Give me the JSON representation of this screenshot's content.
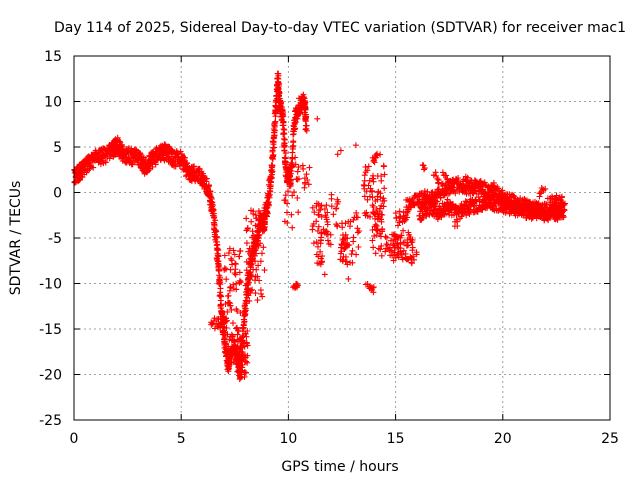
{
  "chart_data": {
    "type": "scatter",
    "title": "Day 114 of 2025, Sidereal Day-to-day VTEC variation (SDTVAR) for receiver mac1",
    "xlabel": "GPS time / hours",
    "ylabel": "SDTVAR / TECUs",
    "xlim": [
      0,
      25
    ],
    "ylim": [
      -25,
      15
    ],
    "xticks": [
      "0",
      "5",
      "10",
      "15",
      "20",
      "25"
    ],
    "yticks": [
      "-25",
      "-20",
      "-15",
      "-10",
      "-5",
      "0",
      "5",
      "10",
      "15"
    ],
    "grid": true,
    "marker": "plus",
    "color": "#ff0000",
    "series": [
      {
        "name": "mac1",
        "trend": [
          [
            0.0,
            1.8
          ],
          [
            0.3,
            2.3
          ],
          [
            0.6,
            3.0
          ],
          [
            1.0,
            3.8
          ],
          [
            1.4,
            4.0
          ],
          [
            1.8,
            4.6
          ],
          [
            2.0,
            5.2
          ],
          [
            2.3,
            4.2
          ],
          [
            2.6,
            4.0
          ],
          [
            3.0,
            3.8
          ],
          [
            3.3,
            2.9
          ],
          [
            3.6,
            3.6
          ],
          [
            4.0,
            4.2
          ],
          [
            4.3,
            4.5
          ],
          [
            4.6,
            3.8
          ],
          [
            5.0,
            3.6
          ],
          [
            5.3,
            2.4
          ],
          [
            5.6,
            2.0
          ],
          [
            6.0,
            1.6
          ],
          [
            6.3,
            0.2
          ],
          [
            6.5,
            -2.0
          ],
          [
            6.7,
            -7.0
          ],
          [
            6.85,
            -12.0
          ],
          [
            7.0,
            -16.0
          ],
          [
            7.2,
            -19.0
          ],
          [
            7.4,
            -16.5
          ],
          [
            7.6,
            -18.0
          ],
          [
            7.75,
            -20.0
          ],
          [
            7.9,
            -15.0
          ],
          [
            8.1,
            -10.0
          ],
          [
            8.3,
            -7.0
          ],
          [
            8.5,
            -5.5
          ],
          [
            8.7,
            -3.0
          ],
          [
            8.85,
            -3.5
          ],
          [
            9.0,
            -2.0
          ],
          [
            9.2,
            2.0
          ],
          [
            9.35,
            7.0
          ],
          [
            9.5,
            12.5
          ],
          [
            9.6,
            10.0
          ],
          [
            9.75,
            8.0
          ],
          [
            9.9,
            2.0
          ],
          [
            10.1,
            1.5
          ],
          [
            10.3,
            8.0
          ],
          [
            10.5,
            9.5
          ],
          [
            10.75,
            10.0
          ],
          [
            10.85,
            7.0
          ]
        ],
        "trend_spread": 0.9,
        "trend_density": 36,
        "clusters": [
          {
            "x": [
              6.4,
              7.1
            ],
            "y": [
              -15.0,
              -13.5
            ],
            "n": 26
          },
          {
            "x": [
              7.0,
              7.8
            ],
            "y": [
              -19.0,
              -6.0
            ],
            "n": 70
          },
          {
            "x": [
              7.6,
              8.1
            ],
            "y": [
              -20.5,
              -15.0
            ],
            "n": 40
          },
          {
            "x": [
              8.0,
              8.9
            ],
            "y": [
              -12.0,
              -1.5
            ],
            "n": 60
          },
          {
            "x": [
              8.9,
              9.1
            ],
            "y": [
              -2.5,
              -1.0
            ],
            "n": 6
          },
          {
            "x": [
              9.8,
              10.5
            ],
            "y": [
              -4.0,
              4.0
            ],
            "n": 24
          },
          {
            "x": [
              10.2,
              10.4
            ],
            "y": [
              -10.5,
              -10.0
            ],
            "n": 8
          },
          {
            "x": [
              10.6,
              11.0
            ],
            "y": [
              0.0,
              3.0
            ],
            "n": 10
          },
          {
            "x": [
              11.1,
              12.0
            ],
            "y": [
              -6.0,
              -1.0
            ],
            "n": 45
          },
          {
            "x": [
              11.3,
              11.6
            ],
            "y": [
              -8.0,
              -6.5
            ],
            "n": 10
          },
          {
            "x": [
              12.0,
              12.4
            ],
            "y": [
              -4.0,
              0.0
            ],
            "n": 12
          },
          {
            "x": [
              12.4,
              13.0
            ],
            "y": [
              -8.0,
              -3.0
            ],
            "n": 40
          },
          {
            "x": [
              13.0,
              13.3
            ],
            "y": [
              -7.0,
              -2.0
            ],
            "n": 12
          },
          {
            "x": [
              13.5,
              14.5
            ],
            "y": [
              -3.0,
              3.0
            ],
            "n": 60
          },
          {
            "x": [
              13.9,
              14.4
            ],
            "y": [
              -7.0,
              -2.0
            ],
            "n": 30
          },
          {
            "x": [
              13.6,
              14.0
            ],
            "y": [
              -11.0,
              -10.0
            ],
            "n": 12
          },
          {
            "x": [
              13.9,
              14.3
            ],
            "y": [
              3.0,
              5.0
            ],
            "n": 10
          },
          {
            "x": [
              14.5,
              15.7
            ],
            "y": [
              -7.5,
              -4.5
            ],
            "n": 70
          },
          {
            "x": [
              15.0,
              15.6
            ],
            "y": [
              -4.5,
              -2.0
            ],
            "n": 20
          },
          {
            "x": [
              15.6,
              16.0
            ],
            "y": [
              -8.0,
              -5.0
            ],
            "n": 15
          }
        ],
        "isolated": [
          [
            11.35,
            8.1
          ],
          [
            12.3,
            4.2
          ],
          [
            12.45,
            4.6
          ],
          [
            13.15,
            5.2
          ],
          [
            10.45,
            -10.2
          ],
          [
            11.7,
            -9.0
          ],
          [
            12.8,
            -9.5
          ]
        ],
        "tail_upper": [
          [
            15.5,
            -1.5
          ],
          [
            16.0,
            -1.0
          ],
          [
            16.4,
            -0.5
          ],
          [
            16.8,
            -0.8
          ],
          [
            17.2,
            0.3
          ],
          [
            17.6,
            0.6
          ],
          [
            18.0,
            0.9
          ],
          [
            18.4,
            0.5
          ],
          [
            18.8,
            0.6
          ],
          [
            19.2,
            0.3
          ],
          [
            19.6,
            0.0
          ],
          [
            20.0,
            -0.5
          ],
          [
            20.4,
            -1.0
          ],
          [
            20.8,
            -1.3
          ],
          [
            21.2,
            -1.6
          ],
          [
            21.6,
            -1.9
          ],
          [
            22.0,
            -2.0
          ],
          [
            22.4,
            -1.7
          ],
          [
            22.8,
            -1.2
          ]
        ],
        "tail_lower": [
          [
            16.1,
            -2.5
          ],
          [
            16.5,
            -1.6
          ],
          [
            17.0,
            -2.2
          ],
          [
            17.4,
            -1.5
          ],
          [
            17.8,
            -2.3
          ],
          [
            18.2,
            -1.8
          ],
          [
            18.6,
            -1.5
          ],
          [
            19.0,
            -1.2
          ],
          [
            19.4,
            -1.0
          ],
          [
            19.8,
            -1.3
          ],
          [
            20.2,
            -1.5
          ],
          [
            20.6,
            -1.8
          ],
          [
            21.0,
            -2.0
          ],
          [
            21.4,
            -2.2
          ],
          [
            21.8,
            -2.3
          ],
          [
            22.2,
            -2.4
          ],
          [
            22.6,
            -2.2
          ],
          [
            22.9,
            -2.0
          ]
        ],
        "tail_spread": 0.8,
        "tail_density": 30,
        "tail_extras": [
          [
            16.3,
            2.8
          ],
          [
            16.8,
            2.1
          ],
          [
            17.0,
            1.2
          ],
          [
            17.3,
            2.0
          ],
          [
            17.5,
            1.5
          ],
          [
            17.8,
            -3.5
          ],
          [
            18.3,
            1.6
          ],
          [
            18.5,
            1.2
          ],
          [
            18.9,
            1.0
          ],
          [
            19.5,
            0.9
          ],
          [
            21.7,
            -0.2
          ],
          [
            21.9,
            0.2
          ],
          [
            22.2,
            -0.5
          ],
          [
            22.4,
            -0.8
          ],
          [
            22.6,
            -0.6
          ]
        ]
      }
    ]
  }
}
